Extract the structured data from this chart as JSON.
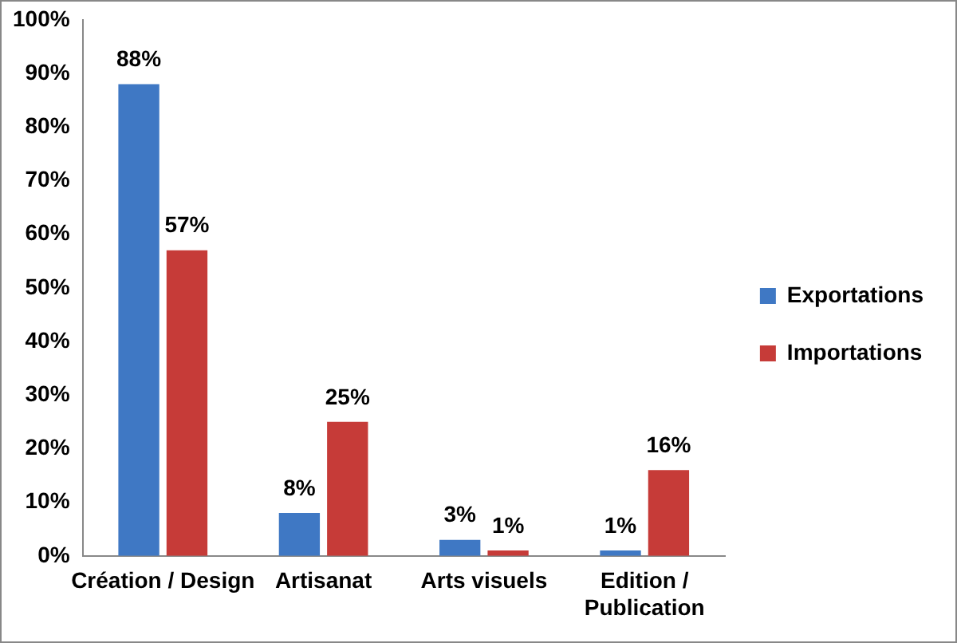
{
  "chart_data": {
    "type": "bar",
    "categories": [
      "Création / Design",
      "Artisanat",
      "Arts visuels",
      "Edition / Publication"
    ],
    "series": [
      {
        "name": "Exportations",
        "color": "#3f78c4",
        "values": [
          88,
          8,
          3,
          1
        ],
        "value_labels": [
          "88%",
          "8%",
          "3%",
          "1%"
        ]
      },
      {
        "name": "Importations",
        "color": "#c63b38",
        "values": [
          57,
          25,
          1,
          16
        ],
        "value_labels": [
          "57%",
          "25%",
          "1%",
          "16%"
        ]
      }
    ],
    "ylim": [
      0,
      100
    ],
    "yticks": [
      {
        "value": 0,
        "label": "0%"
      },
      {
        "value": 10,
        "label": "10%"
      },
      {
        "value": 20,
        "label": "20%"
      },
      {
        "value": 30,
        "label": "30%"
      },
      {
        "value": 40,
        "label": "40%"
      },
      {
        "value": 50,
        "label": "50%"
      },
      {
        "value": 60,
        "label": "60%"
      },
      {
        "value": 70,
        "label": "70%"
      },
      {
        "value": 80,
        "label": "80%"
      },
      {
        "value": 90,
        "label": "90%"
      },
      {
        "value": 100,
        "label": "100%"
      }
    ],
    "grid": false,
    "legend": "right"
  }
}
